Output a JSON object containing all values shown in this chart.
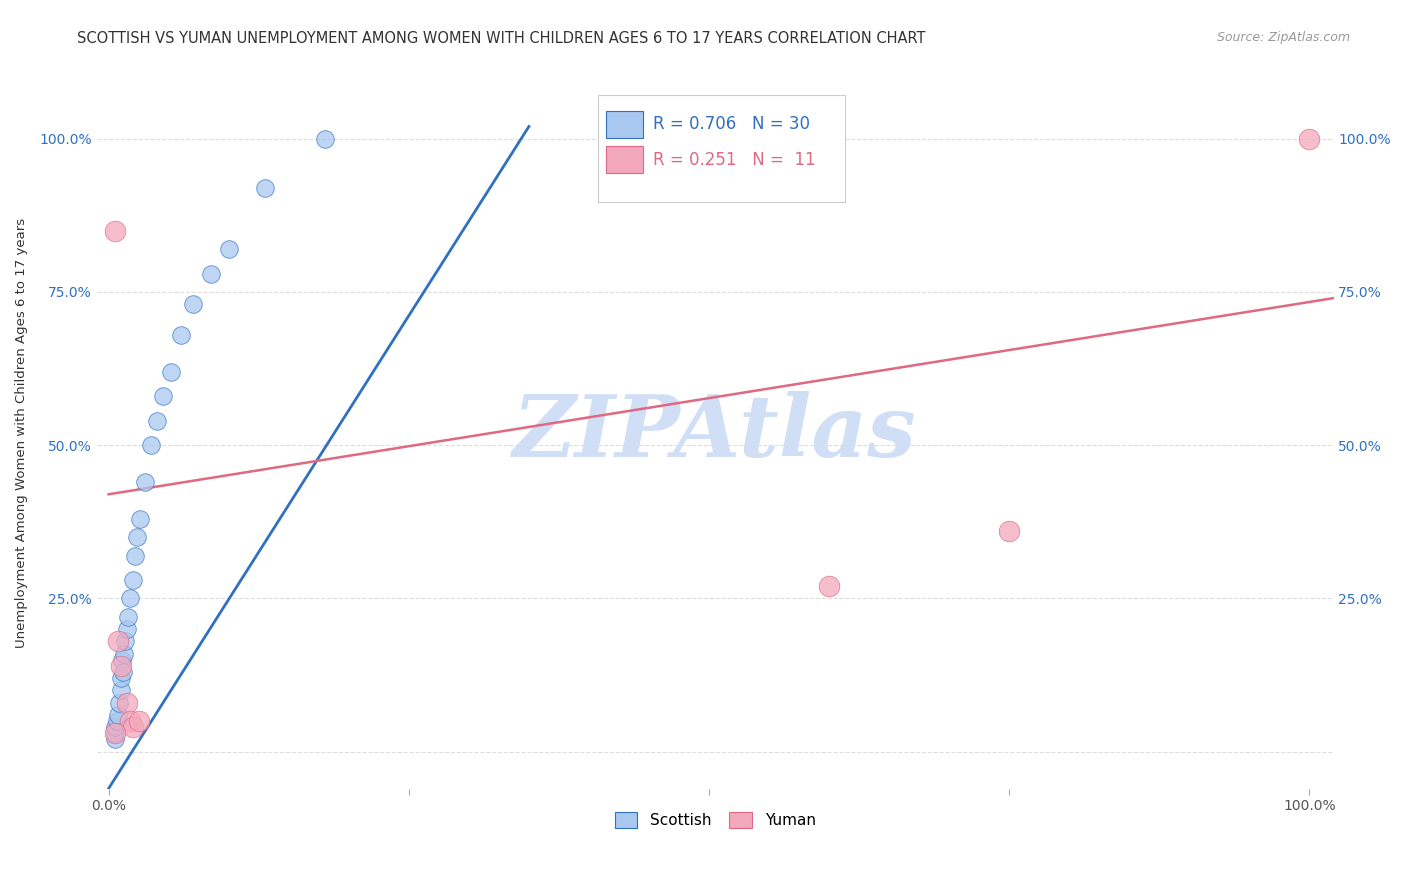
{
  "title": "SCOTTISH VS YUMAN UNEMPLOYMENT AMONG WOMEN WITH CHILDREN AGES 6 TO 17 YEARS CORRELATION CHART",
  "source": "Source: ZipAtlas.com",
  "ylabel": "Unemployment Among Women with Children Ages 6 to 17 years",
  "xlabel": "",
  "xlim": [
    -0.01,
    1.02
  ],
  "ylim": [
    -0.06,
    1.1
  ],
  "xticks": [
    0.0,
    0.25,
    0.5,
    0.75,
    1.0
  ],
  "xticklabels": [
    "0.0%",
    "",
    "",
    "",
    "100.0%"
  ],
  "yticks": [
    0.0,
    0.25,
    0.5,
    0.75,
    1.0
  ],
  "yticklabels": [
    "",
    "25.0%",
    "50.0%",
    "75.0%",
    "100.0%"
  ],
  "scottish_color": "#a8c8f0",
  "yuman_color": "#f4a8bc",
  "scottish_line_color": "#3070c0",
  "yuman_line_color": "#e06880",
  "scottish_R": 0.706,
  "scottish_N": 30,
  "yuman_R": 0.251,
  "yuman_N": 11,
  "watermark": "ZIPAtlas",
  "watermark_color": "#d0dff5",
  "scottish_x": [
    0.005,
    0.005,
    0.005,
    0.007,
    0.008,
    0.009,
    0.01,
    0.01,
    0.011,
    0.012,
    0.013,
    0.014,
    0.015,
    0.016,
    0.018,
    0.02,
    0.022,
    0.024,
    0.026,
    0.03,
    0.035,
    0.04,
    0.045,
    0.052,
    0.06,
    0.07,
    0.085,
    0.1,
    0.13,
    0.18
  ],
  "scottish_y": [
    0.02,
    0.03,
    0.04,
    0.05,
    0.06,
    0.08,
    0.1,
    0.12,
    0.15,
    0.13,
    0.16,
    0.18,
    0.2,
    0.22,
    0.25,
    0.28,
    0.32,
    0.35,
    0.38,
    0.44,
    0.5,
    0.54,
    0.58,
    0.62,
    0.68,
    0.73,
    0.78,
    0.82,
    0.92,
    1.0
  ],
  "yuman_x": [
    0.005,
    0.008,
    0.01,
    0.015,
    0.018,
    0.02,
    0.025,
    0.6,
    0.75,
    1.0,
    0.005
  ],
  "yuman_y": [
    0.85,
    0.18,
    0.14,
    0.08,
    0.05,
    0.04,
    0.05,
    0.27,
    0.36,
    1.0,
    0.03
  ],
  "scottish_line_x": [
    0.0,
    0.35
  ],
  "scottish_line_y": [
    -0.06,
    1.02
  ],
  "yuman_line_x": [
    0.0,
    1.02
  ],
  "yuman_line_y": [
    0.42,
    0.74
  ],
  "grid_color": "#dddddd",
  "grid_linestyle": "--",
  "background_color": "#ffffff",
  "title_fontsize": 10.5,
  "axis_label_fontsize": 9.5,
  "tick_fontsize": 10,
  "legend_fontsize": 12,
  "source_fontsize": 9
}
